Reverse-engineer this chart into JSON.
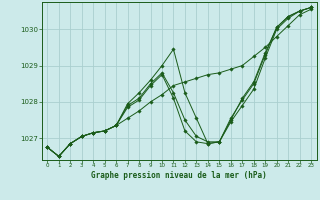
{
  "title": "Graphe pression niveau de la mer (hPa)",
  "bg_color": "#cceaea",
  "grid_color": "#aacfcf",
  "line_color": "#1a5c1a",
  "ylim": [
    1026.4,
    1030.75
  ],
  "xlim": [
    -0.5,
    23.5
  ],
  "yticks": [
    1027,
    1028,
    1029,
    1030
  ],
  "xticks": [
    0,
    1,
    2,
    3,
    4,
    5,
    6,
    7,
    8,
    9,
    10,
    11,
    12,
    13,
    14,
    15,
    16,
    17,
    18,
    19,
    20,
    21,
    22,
    23
  ],
  "series": [
    [
      1026.75,
      1026.5,
      1026.85,
      1027.05,
      1027.15,
      1027.2,
      1027.35,
      1027.55,
      1027.75,
      1028.0,
      1028.2,
      1028.45,
      1028.55,
      1028.65,
      1028.75,
      1028.8,
      1028.9,
      1029.0,
      1029.25,
      1029.5,
      1029.8,
      1030.1,
      1030.4,
      1030.55
    ],
    [
      1026.75,
      1026.5,
      1026.85,
      1027.05,
      1027.15,
      1027.2,
      1027.35,
      1027.95,
      1028.25,
      1028.6,
      1029.0,
      1029.45,
      1028.25,
      1027.55,
      1026.85,
      1026.9,
      1027.5,
      1028.1,
      1028.55,
      1029.35,
      1030.05,
      1030.35,
      1030.5,
      1030.6
    ],
    [
      1026.75,
      1026.5,
      1026.85,
      1027.05,
      1027.15,
      1027.2,
      1027.35,
      1027.9,
      1028.1,
      1028.5,
      1028.8,
      1028.25,
      1027.5,
      1027.05,
      1026.9,
      1026.9,
      1027.55,
      1028.05,
      1028.5,
      1029.3,
      1030.05,
      1030.35,
      1030.5,
      1030.6
    ],
    [
      1026.75,
      1026.5,
      1026.85,
      1027.05,
      1027.15,
      1027.2,
      1027.35,
      1027.85,
      1028.05,
      1028.45,
      1028.75,
      1028.1,
      1027.2,
      1026.9,
      1026.85,
      1026.9,
      1027.45,
      1027.9,
      1028.35,
      1029.2,
      1030.0,
      1030.3,
      1030.5,
      1030.6
    ]
  ]
}
